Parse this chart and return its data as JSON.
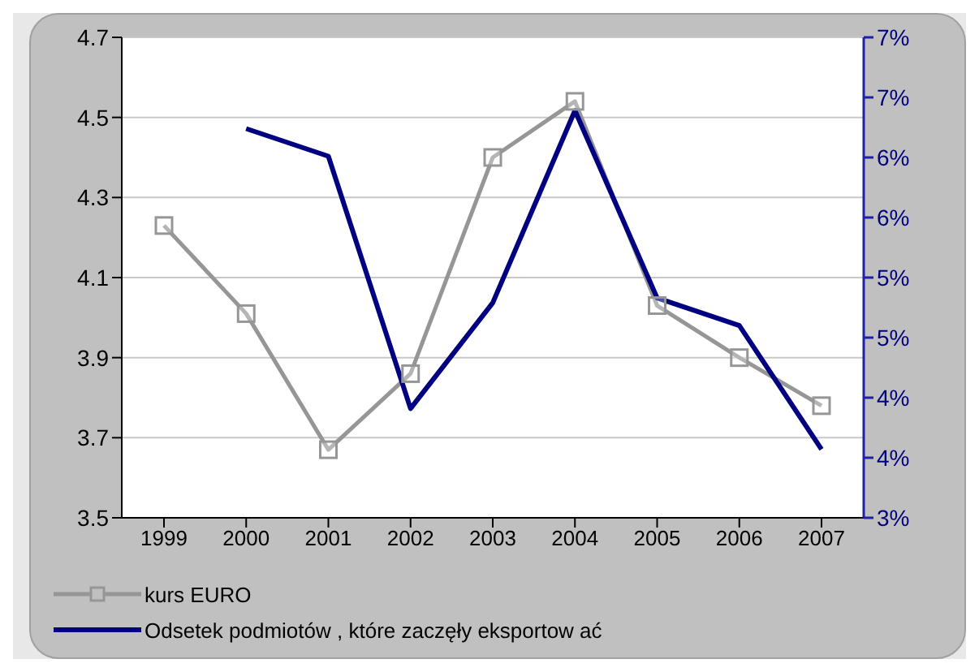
{
  "chart_data": {
    "type": "line",
    "categories": [
      "1999",
      "2000",
      "2001",
      "2002",
      "2003",
      "2004",
      "2005",
      "2006",
      "2007"
    ],
    "series": [
      {
        "name": "kurs EURO",
        "color": "#969696",
        "marker": "square",
        "values": [
          4.23,
          4.01,
          3.67,
          3.86,
          4.4,
          4.54,
          4.03,
          3.9,
          3.78
        ]
      },
      {
        "name": "Odsetek podmiotów , które zaczęły eksportow ać",
        "color": "#000080",
        "marker": "none",
        "axis": "y2",
        "values": [
          null,
          6.24,
          6.01,
          3.91,
          4.79,
          6.39,
          4.83,
          4.6,
          3.57
        ]
      }
    ],
    "ylim": [
      3.5,
      4.7
    ],
    "yticks": [
      3.5,
      3.7,
      3.9,
      4.1,
      4.3,
      4.5,
      4.7
    ],
    "y2lim": [
      3,
      7
    ],
    "y2ticks": [
      {
        "value": 3,
        "label": "3%"
      },
      {
        "value": 3.5,
        "label": "4%"
      },
      {
        "value": 4,
        "label": "4%"
      },
      {
        "value": 4.5,
        "label": "5%"
      },
      {
        "value": 5,
        "label": "5%"
      },
      {
        "value": 5.5,
        "label": "6%"
      },
      {
        "value": 6,
        "label": "6%"
      },
      {
        "value": 6.5,
        "label": "7%"
      },
      {
        "value": 7,
        "label": "7%"
      }
    ],
    "grid": "y",
    "legend": "bottom left",
    "line_style": "solid"
  }
}
